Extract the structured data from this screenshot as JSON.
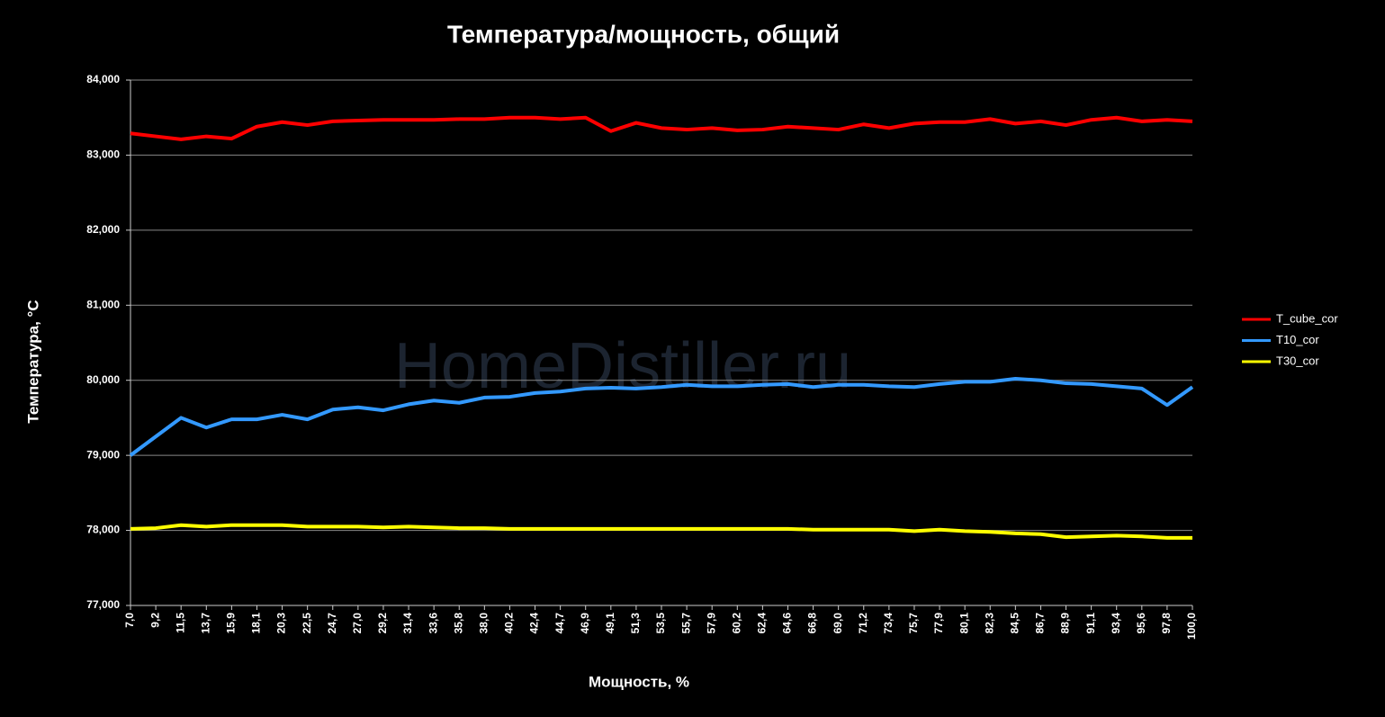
{
  "chart_data": {
    "type": "line",
    "title": "Температура/мощность, общий",
    "x_label": "Мощность, %",
    "y_label": "Температура, °C",
    "watermark": "HomeDistiller.ru",
    "categories": [
      "7,0",
      "9,2",
      "11,5",
      "13,7",
      "15,9",
      "18,1",
      "20,3",
      "22,5",
      "24,7",
      "27,0",
      "29,2",
      "31,4",
      "33,6",
      "35,8",
      "38,0",
      "40,2",
      "42,4",
      "44,7",
      "46,9",
      "49,1",
      "51,3",
      "53,5",
      "55,7",
      "57,9",
      "60,2",
      "62,4",
      "64,6",
      "66,8",
      "69,0",
      "71,2",
      "73,4",
      "75,7",
      "77,9",
      "80,1",
      "82,3",
      "84,5",
      "86,7",
      "88,9",
      "91,1",
      "93,4",
      "95,6",
      "97,8",
      "100,0"
    ],
    "series": [
      {
        "name": "T_cube_cor",
        "color": "#ff0000",
        "values": [
          83.29,
          83.25,
          83.21,
          83.25,
          83.22,
          83.38,
          83.44,
          83.4,
          83.45,
          83.46,
          83.47,
          83.47,
          83.47,
          83.48,
          83.48,
          83.5,
          83.5,
          83.48,
          83.5,
          83.32,
          83.43,
          83.36,
          83.34,
          83.36,
          83.33,
          83.34,
          83.38,
          83.36,
          83.34,
          83.41,
          83.36,
          83.42,
          83.44,
          83.44,
          83.48,
          83.42,
          83.45,
          83.4,
          83.47,
          83.5,
          83.45,
          83.47,
          83.45
        ]
      },
      {
        "name": "T10_cor",
        "color": "#3399ff",
        "values": [
          79.0,
          79.25,
          79.5,
          79.37,
          79.48,
          79.48,
          79.54,
          79.48,
          79.61,
          79.64,
          79.6,
          79.68,
          79.73,
          79.7,
          79.77,
          79.78,
          79.83,
          79.85,
          79.89,
          79.9,
          79.89,
          79.91,
          79.94,
          79.92,
          79.92,
          79.94,
          79.95,
          79.91,
          79.94,
          79.94,
          79.92,
          79.91,
          79.95,
          79.98,
          79.98,
          80.02,
          80.0,
          79.96,
          79.95,
          79.92,
          79.89,
          79.67,
          79.91
        ]
      },
      {
        "name": "T30_cor",
        "color": "#ffff00",
        "values": [
          78.02,
          78.03,
          78.07,
          78.05,
          78.07,
          78.07,
          78.07,
          78.05,
          78.05,
          78.05,
          78.04,
          78.05,
          78.04,
          78.03,
          78.03,
          78.02,
          78.02,
          78.02,
          78.02,
          78.02,
          78.02,
          78.02,
          78.02,
          78.02,
          78.02,
          78.02,
          78.02,
          78.01,
          78.01,
          78.01,
          78.01,
          77.99,
          78.01,
          77.99,
          77.98,
          77.96,
          77.95,
          77.91,
          77.92,
          77.93,
          77.92,
          77.9,
          77.9
        ]
      }
    ],
    "ylim": [
      77,
      84
    ],
    "yticks": [
      {
        "value": 77,
        "label": "77,000"
      },
      {
        "value": 78,
        "label": "78,000"
      },
      {
        "value": 79,
        "label": "79,000"
      },
      {
        "value": 80,
        "label": "80,000"
      },
      {
        "value": 81,
        "label": "81,000"
      },
      {
        "value": 82,
        "label": "82,000"
      },
      {
        "value": 83,
        "label": "83,000"
      },
      {
        "value": 84,
        "label": "84,000"
      }
    ],
    "grid": true,
    "legend": "right"
  }
}
